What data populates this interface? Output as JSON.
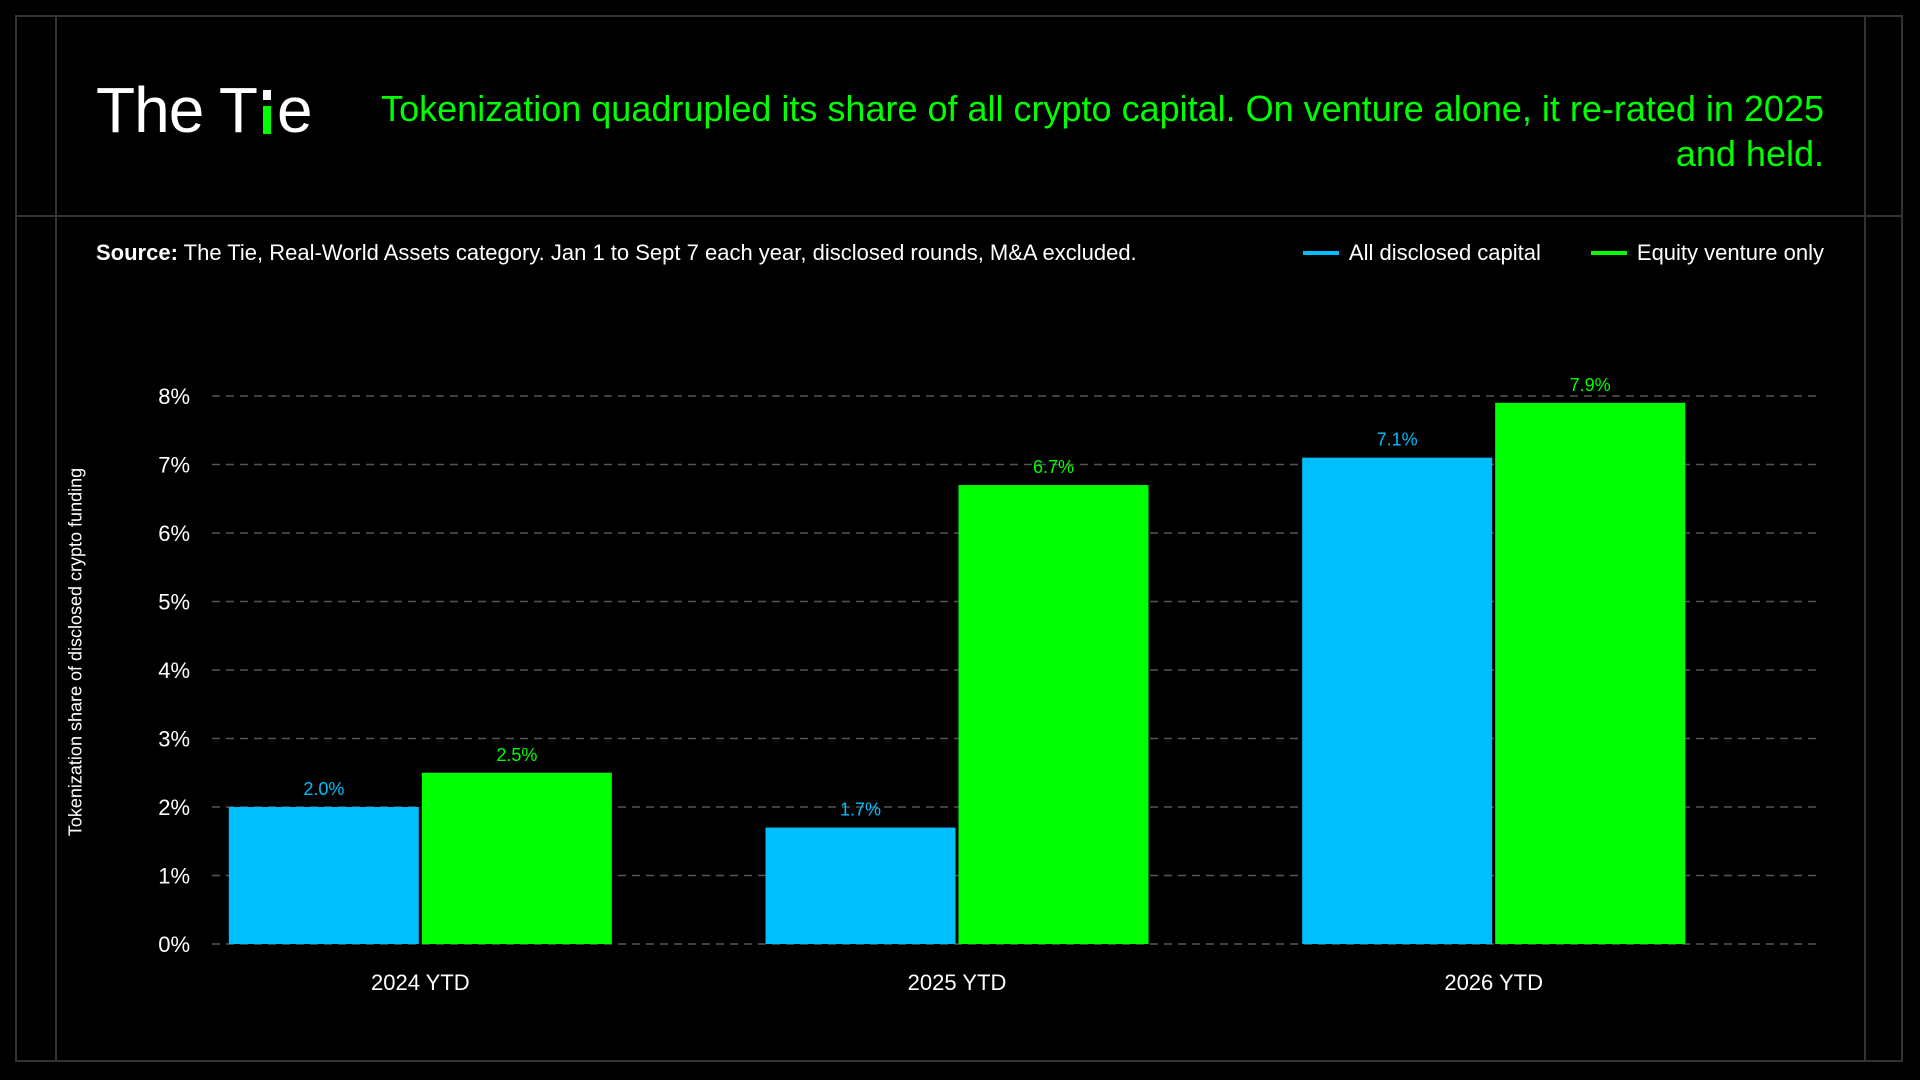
{
  "brand": {
    "logo_prefix": "The T",
    "logo_suffix": "e",
    "accent_color": "#00ff00"
  },
  "headline": "Tokenization quadrupled its share of all crypto capital. On venture alone, it re-rated in 2025 and held.",
  "source": {
    "label": "Source:",
    "text": "The Tie, Real-World Assets category. Jan 1 to Sept 7 each year, disclosed rounds, M&A excluded."
  },
  "chart_data": {
    "type": "bar",
    "categories": [
      "2024 YTD",
      "2025 YTD",
      "2026 YTD"
    ],
    "series": [
      {
        "name": "All disclosed capital",
        "color": "#00bfff",
        "values": [
          2.0,
          1.7,
          7.1
        ],
        "labels": [
          "2.0%",
          "1.7%",
          "7.1%"
        ]
      },
      {
        "name": "Equity venture only",
        "color": "#00ff00",
        "values": [
          2.5,
          6.7,
          7.9
        ],
        "labels": [
          "2.5%",
          "6.7%",
          "7.9%"
        ]
      }
    ],
    "ylabel": "Tokenization share of disclosed crypto funding",
    "ylim": [
      0,
      8
    ],
    "yticks": [
      "0%",
      "1%",
      "2%",
      "3%",
      "4%",
      "5%",
      "6%",
      "7%",
      "8%"
    ],
    "grid": true,
    "legend_placement": "top-right"
  }
}
